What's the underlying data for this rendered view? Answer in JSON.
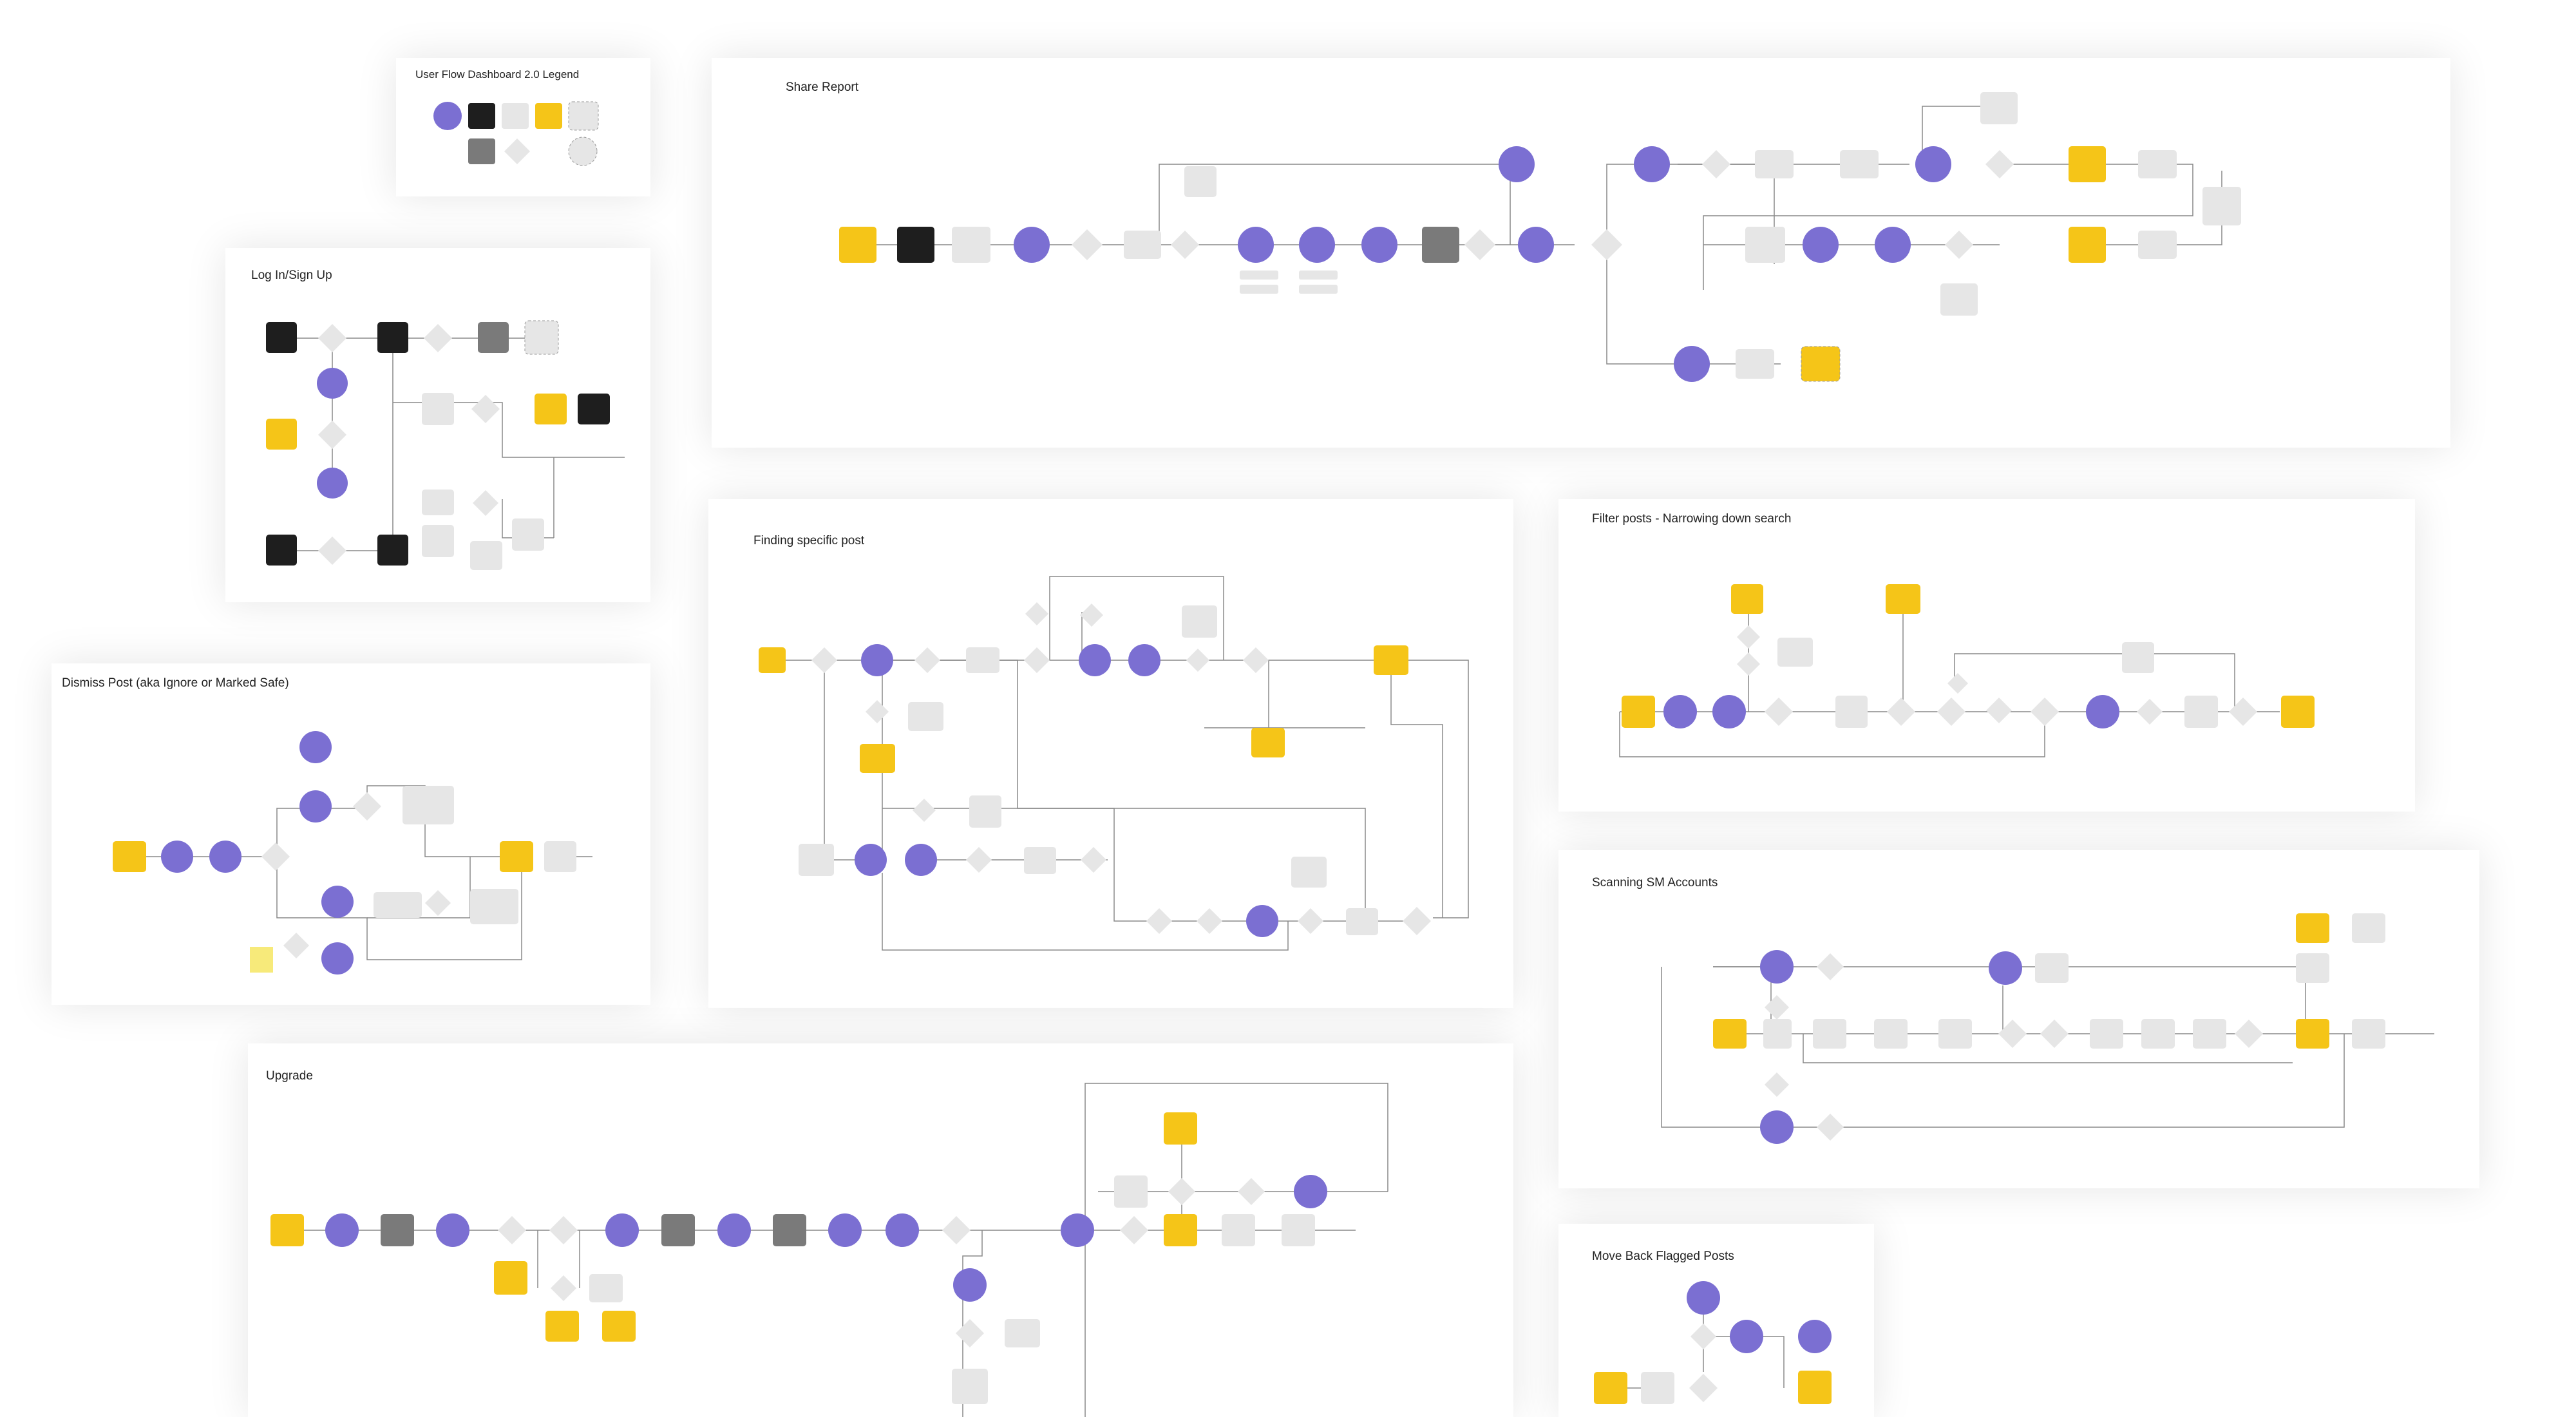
{
  "colors": {
    "purple": "#7b6fd2",
    "yellow": "#f5c518",
    "black": "#1e1e1e",
    "dark_gray": "#7a7a7a",
    "light_gray": "#e6e6e6",
    "line": "#8a8a8a"
  },
  "boards": {
    "legend": {
      "title": "User Flow Dashboard 2.0 Legend"
    },
    "login": {
      "title": "Log In/Sign Up"
    },
    "dismiss": {
      "title": "Dismiss Post (aka Ignore or Marked Safe)"
    },
    "share": {
      "title": "Share Report"
    },
    "finding": {
      "title": "Finding specific post"
    },
    "filter": {
      "title": "Filter posts - Narrowing down search"
    },
    "scanning": {
      "title": "Scanning SM Accounts"
    },
    "upgrade": {
      "title": "Upgrade"
    },
    "moveback": {
      "title": "Move Back Flagged Posts"
    }
  }
}
